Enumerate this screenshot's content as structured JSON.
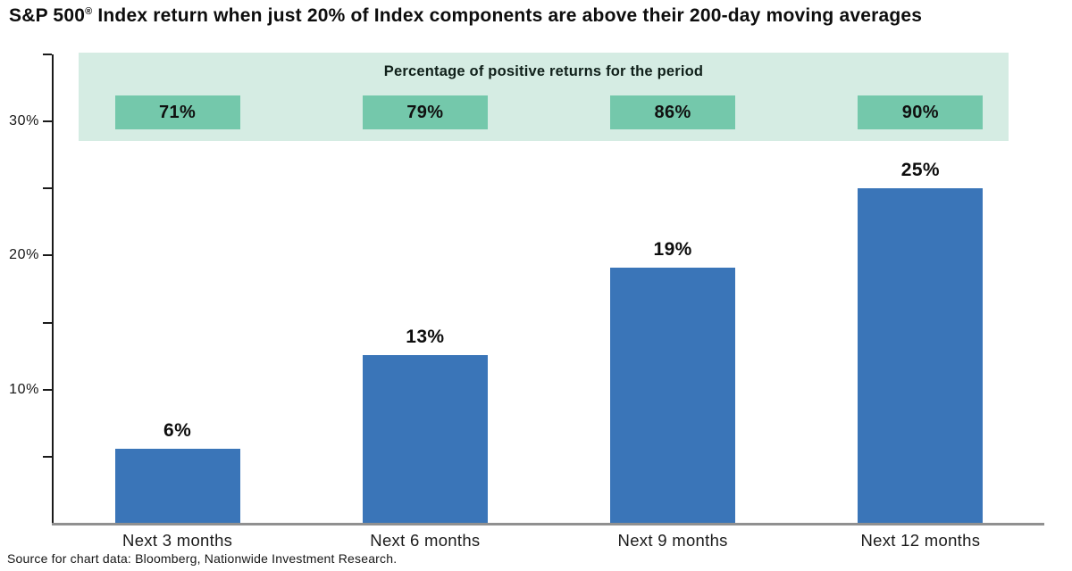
{
  "title": {
    "prefix": "S&P 500",
    "registered_mark": "®",
    "suffix": " Index return when just 20% of Index components are above their 200-day moving averages"
  },
  "banner": {
    "heading": "Percentage of positive returns for the period"
  },
  "source_note": "Source for chart data: Bloomberg, Nationwide Investment Research.",
  "chart_data": {
    "type": "bar",
    "title": "S&P 500® Index return when just 20% of Index components are above their 200-day moving averages",
    "categories": [
      "Next 3 months",
      "Next 6 months",
      "Next 9 months",
      "Next 12 months"
    ],
    "values": [
      5.6,
      12.6,
      19.1,
      25.0
    ],
    "value_labels": [
      "6%",
      "13%",
      "19%",
      "25%"
    ],
    "positive_return_pct": [
      "71%",
      "79%",
      "86%",
      "90%"
    ],
    "annotation_band_heading": "Percentage of positive returns for the period",
    "xlabel": "",
    "ylabel": "",
    "ylim": [
      0,
      35
    ],
    "y_axis": {
      "major_ticks": [
        {
          "value": 30,
          "label": "30%"
        },
        {
          "value": 20,
          "label": "20%"
        },
        {
          "value": 10,
          "label": "10%"
        }
      ],
      "minor_ticks": [
        35,
        25,
        15,
        5
      ]
    },
    "grid": false,
    "legend": false,
    "colors": {
      "bar": "#3a75b8",
      "band_background": "#d5ece3",
      "band_box": "#74c8ab",
      "baseline": "#909090",
      "axis": "#1a1a1a"
    }
  }
}
